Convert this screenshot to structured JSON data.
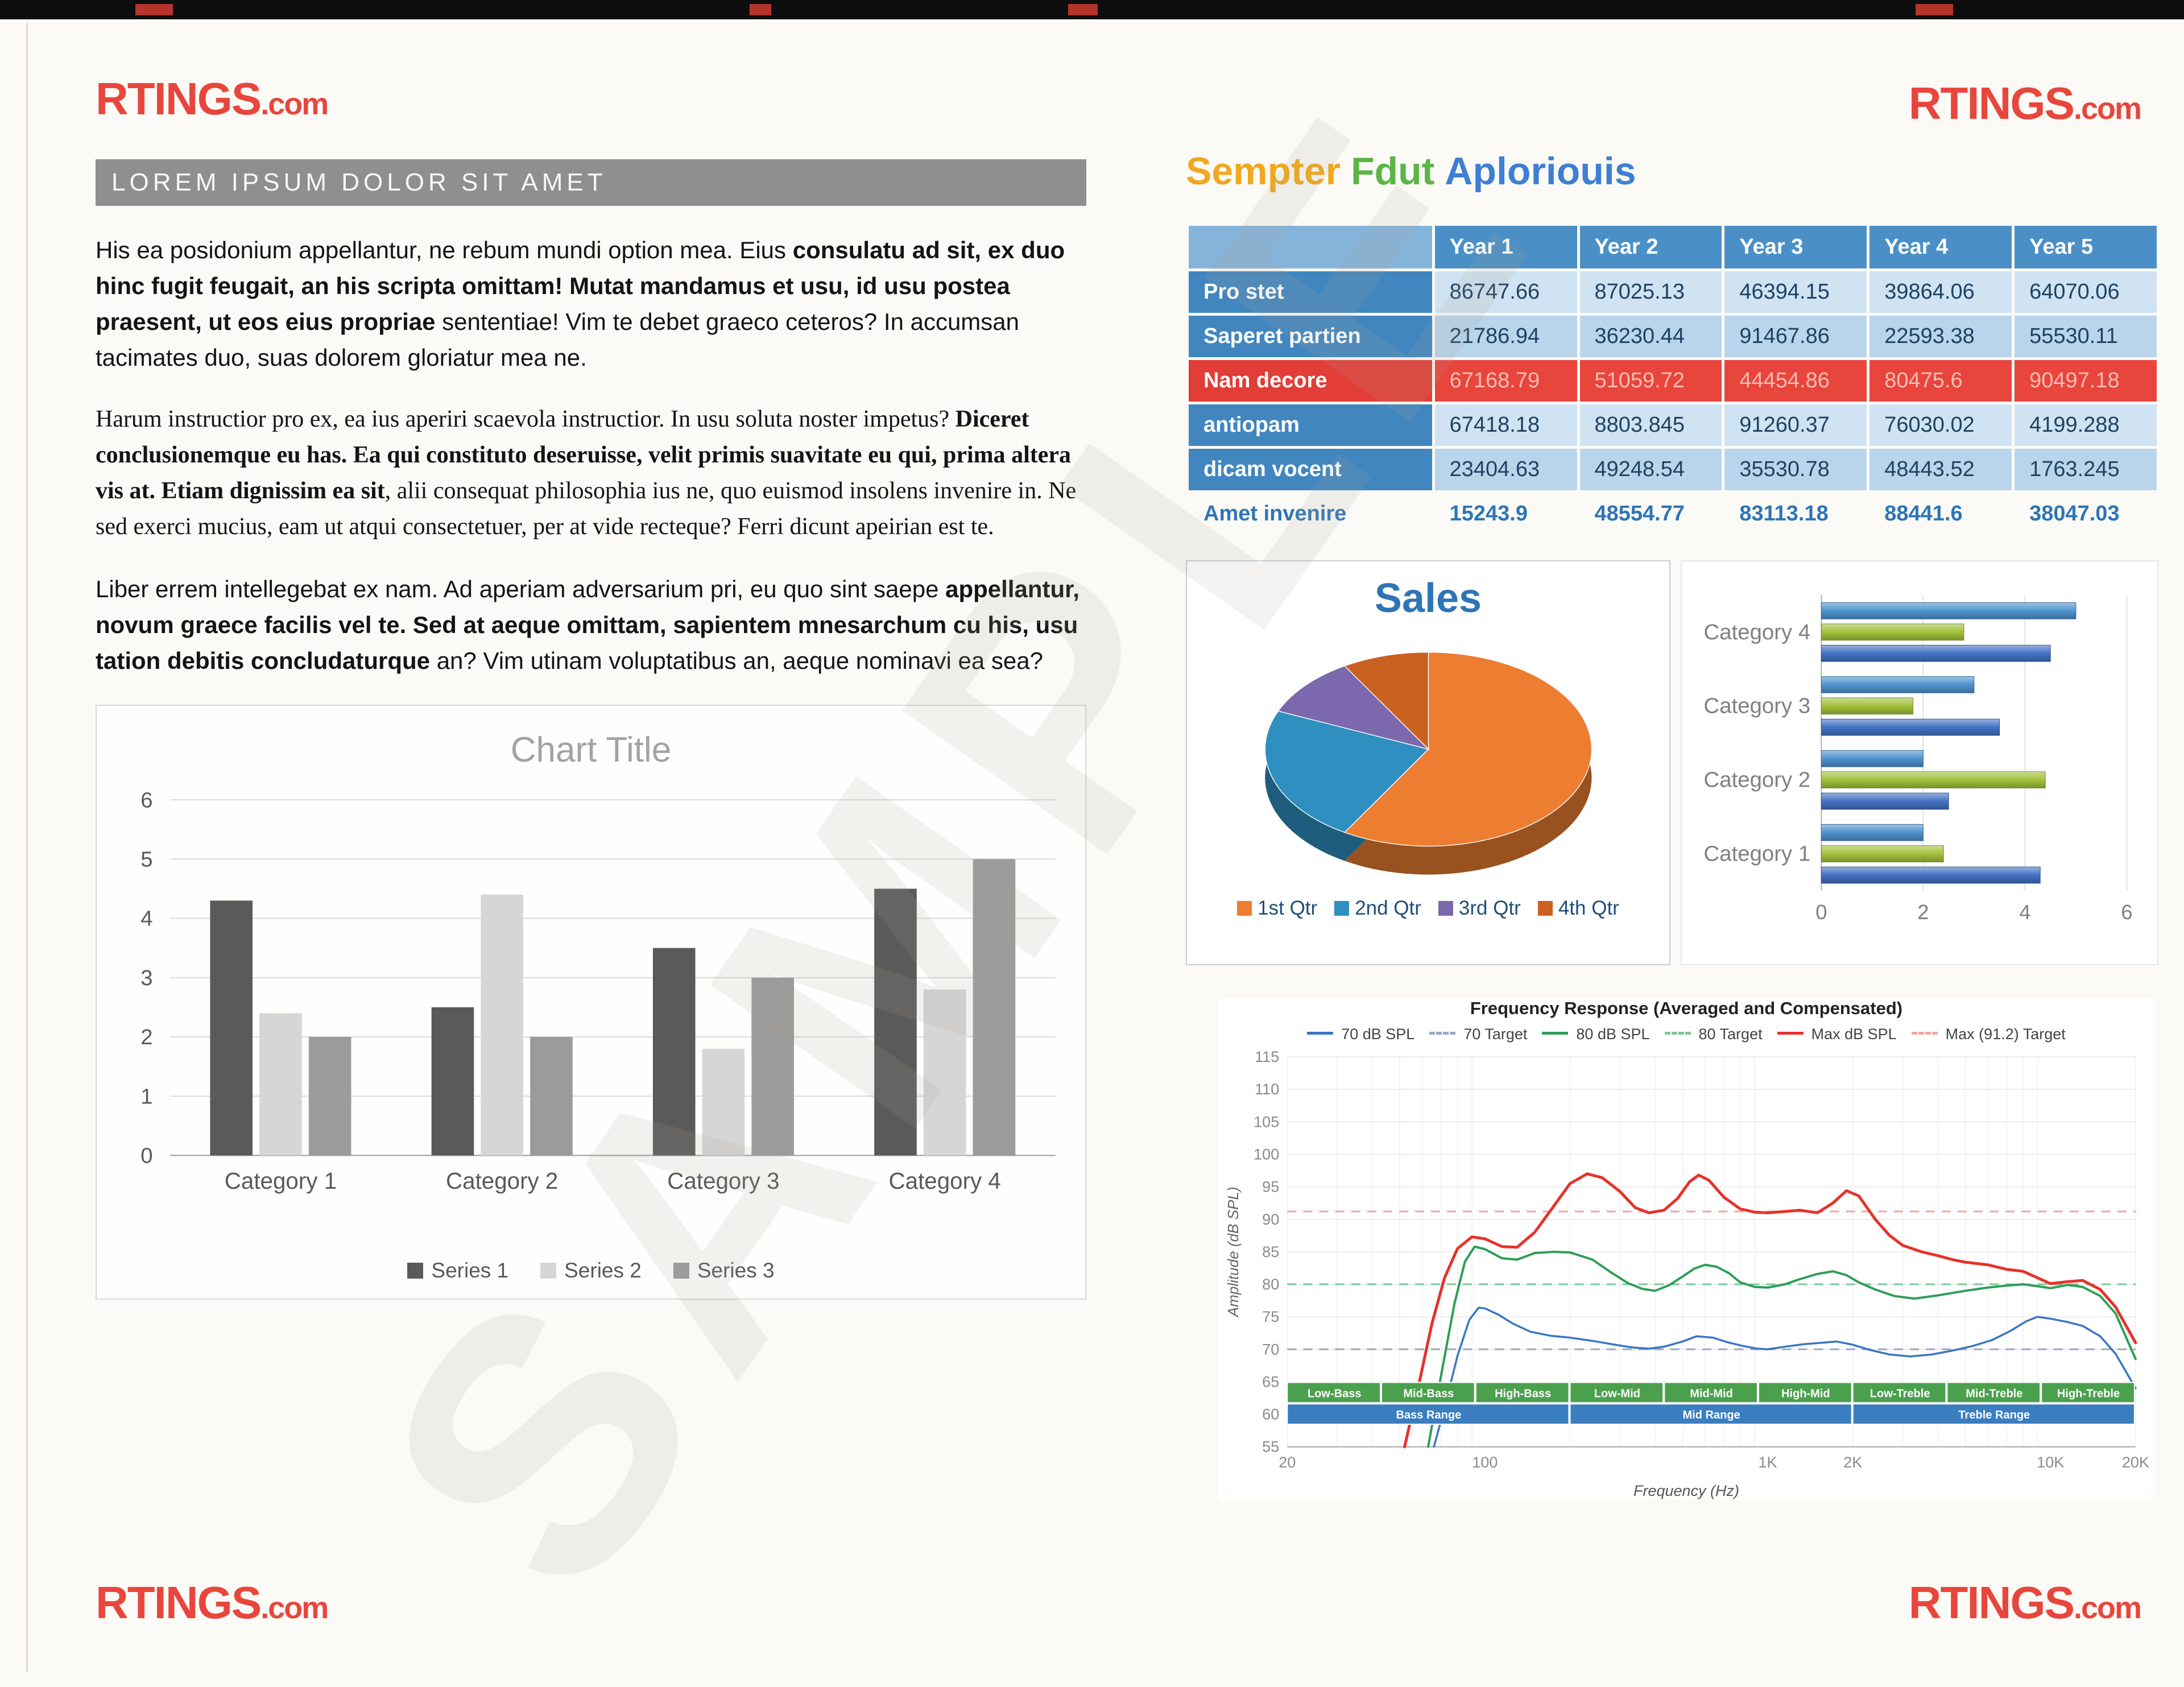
{
  "page": {
    "watermark": "SAMPLE"
  },
  "logo": {
    "text": "RTINGS",
    "suffix": ".com",
    "color": "#e8463c"
  },
  "left": {
    "header_bar": "LOREM IPSUM DOLOR SIT AMET",
    "paragraphs": [
      {
        "pre": "His ea posidonium appellantur, ne rebum mundi option mea. Eius ",
        "bold": "consulatu ad sit, ex duo hinc fugit feugait, an his scripta omittam! Mutat mandamus et usu, id usu postea praesent, ut eos eius propriae",
        "post": " sententiae! Vim te debet graeco ceteros? In accumsan tacimates duo, suas dolorem gloriatur mea ne."
      },
      {
        "pre": "Harum instructior pro ex, ea ius aperiri scaevola instructior. In usu soluta noster impetus? ",
        "bold": "Diceret conclusionemque eu has. Ea qui constituto deseruisse, velit primis suavitate eu qui, prima altera vis at. Etiam dignissim ea sit",
        "post": ", alii consequat philosophia ius ne, quo euismod insolens invenire in. Ne sed exerci mucius, eam ut atqui consectetuer, per at vide recteque? Ferri dicunt apeirian est te."
      },
      {
        "pre": "Liber errem intellegebat ex nam. Ad aperiam adversarium pri, eu quo sint saepe ",
        "bold": "appellantur, novum graece facilis vel te. Sed at aeque omittam, sapientem mnesarchum cu his, usu tation debitis concludaturque",
        "post": " an? Vim utinam voluptatibus an, aeque nominavi ea sea?"
      }
    ]
  },
  "right": {
    "heading": {
      "words": [
        "Sempter",
        "Fdut",
        "Aploriouis"
      ],
      "colors": [
        "#f0a81e",
        "#5cb545",
        "#3e7fd4"
      ]
    }
  },
  "table": {
    "corner_label": "",
    "columns": [
      "Year 1",
      "Year 2",
      "Year 3",
      "Year 4",
      "Year 5"
    ],
    "rows": [
      {
        "label": "Pro stet",
        "style": "light",
        "values": [
          "86747.66",
          "87025.13",
          "46394.15",
          "39864.06",
          "64070.06"
        ]
      },
      {
        "label": "Saperet partien",
        "style": "mid",
        "values": [
          "21786.94",
          "36230.44",
          "91467.86",
          "22593.38",
          "55530.11"
        ]
      },
      {
        "label": "Nam decore",
        "style": "red",
        "values": [
          "67168.79",
          "51059.72",
          "44454.86",
          "80475.6",
          "90497.18"
        ]
      },
      {
        "label": "antiopam",
        "style": "light",
        "values": [
          "67418.18",
          "8803.845",
          "91260.37",
          "76030.02",
          "4199.288"
        ]
      },
      {
        "label": "dicam vocent",
        "style": "mid",
        "values": [
          "23404.63",
          "49248.54",
          "35530.78",
          "48443.52",
          "1763.245"
        ]
      },
      {
        "label": "Amet invenire",
        "style": "plain",
        "values": [
          "15243.9",
          "48554.77",
          "83113.18",
          "88441.6",
          "38047.03"
        ]
      }
    ]
  },
  "chart_data": [
    {
      "id": "column",
      "type": "bar",
      "title": "Chart Title",
      "categories": [
        "Category 1",
        "Category 2",
        "Category 3",
        "Category 4"
      ],
      "series": [
        {
          "name": "Series 1",
          "color": "#5a5a5a",
          "values": [
            4.3,
            2.5,
            3.5,
            4.5
          ]
        },
        {
          "name": "Series 2",
          "color": "#d6d6d6",
          "values": [
            2.4,
            4.4,
            1.8,
            2.8
          ]
        },
        {
          "name": "Series 3",
          "color": "#9b9b9b",
          "values": [
            2,
            2,
            3,
            5
          ]
        }
      ],
      "ylim": [
        0,
        6
      ],
      "yticks": [
        0,
        1,
        2,
        3,
        4,
        5,
        6
      ],
      "legend_position": "bottom"
    },
    {
      "id": "pie",
      "type": "pie",
      "title": "Sales",
      "labels": [
        "1st Qtr",
        "2nd Qtr",
        "3rd Qtr",
        "4th Qtr"
      ],
      "values": [
        8.2,
        3.2,
        1.4,
        1.2
      ],
      "colors": [
        "#ed7d31",
        "#2e8fc0",
        "#7b68ad",
        "#cb6120"
      ]
    },
    {
      "id": "hbar",
      "type": "bar",
      "orientation": "horizontal",
      "categories": [
        "Category 1",
        "Category 2",
        "Category 3",
        "Category 4"
      ],
      "series": [
        {
          "name": "Series 1",
          "color": "#4472c4",
          "values": [
            4.3,
            2.5,
            3.5,
            4.5
          ]
        },
        {
          "name": "Series 2",
          "color": "#a3c13c",
          "values": [
            2.4,
            4.4,
            1.8,
            2.8
          ]
        },
        {
          "name": "Series 3",
          "color": "#4f93ce",
          "values": [
            2,
            2,
            3,
            5
          ]
        }
      ],
      "xlim": [
        0,
        6
      ],
      "xticks": [
        0,
        2,
        4,
        6
      ]
    },
    {
      "id": "freq",
      "type": "line",
      "xscale": "log",
      "title": "Frequency Response (Averaged and Compensated)",
      "xlabel": "Frequency (Hz)",
      "ylabel": "Amplitude (dB SPL)",
      "ylim": [
        55,
        115
      ],
      "yticks": [
        55,
        60,
        65,
        70,
        75,
        80,
        85,
        90,
        95,
        100,
        105,
        110,
        115
      ],
      "xticks": [
        {
          "f": 20,
          "label": "20"
        },
        {
          "f": 100,
          "label": "100"
        },
        {
          "f": 1000,
          "label": "1K"
        },
        {
          "f": 2000,
          "label": "2K"
        },
        {
          "f": 10000,
          "label": "10K"
        },
        {
          "f": 20000,
          "label": "20K"
        }
      ],
      "targets": [
        {
          "label": "70 Target",
          "value": 70,
          "color": "#9aa7c4"
        },
        {
          "label": "80 Target",
          "value": 80,
          "color": "#7cc79a"
        },
        {
          "label": "Max (91.2) Target",
          "value": 91.2,
          "color": "#f0a6a0"
        }
      ],
      "series": [
        {
          "name": "70 dB SPL",
          "color": "#3a76c4",
          "width": 3.5,
          "points": [
            [
              66,
              55
            ],
            [
              72,
              61
            ],
            [
              80,
              69
            ],
            [
              88,
              74.5
            ],
            [
              95,
              76.4
            ],
            [
              100,
              76.3
            ],
            [
              112,
              75.3
            ],
            [
              125,
              74
            ],
            [
              145,
              72.7
            ],
            [
              170,
              72.1
            ],
            [
              200,
              71.8
            ],
            [
              240,
              71.3
            ],
            [
              280,
              70.8
            ],
            [
              330,
              70.3
            ],
            [
              380,
              70.1
            ],
            [
              430,
              70.4
            ],
            [
              500,
              71.2
            ],
            [
              560,
              72
            ],
            [
              640,
              71.8
            ],
            [
              720,
              71.1
            ],
            [
              820,
              70.5
            ],
            [
              920,
              70.1
            ],
            [
              1000,
              70
            ],
            [
              1150,
              70.4
            ],
            [
              1350,
              70.8
            ],
            [
              1550,
              71
            ],
            [
              1750,
              71.2
            ],
            [
              2000,
              70.7
            ],
            [
              2300,
              69.9
            ],
            [
              2700,
              69.2
            ],
            [
              3200,
              68.9
            ],
            [
              3800,
              69.2
            ],
            [
              4500,
              69.8
            ],
            [
              5300,
              70.5
            ],
            [
              6200,
              71.4
            ],
            [
              7200,
              72.8
            ],
            [
              8200,
              74.3
            ],
            [
              9000,
              75
            ],
            [
              10000,
              74.7
            ],
            [
              11500,
              74.2
            ],
            [
              13000,
              73.6
            ],
            [
              15000,
              72
            ],
            [
              17000,
              69.3
            ],
            [
              20000,
              64
            ]
          ]
        },
        {
          "name": "80 dB SPL",
          "color": "#2e9e57",
          "width": 4,
          "points": [
            [
              63,
              55
            ],
            [
              70,
              66
            ],
            [
              78,
              77
            ],
            [
              85,
              83.5
            ],
            [
              92,
              85.8
            ],
            [
              100,
              85.4
            ],
            [
              115,
              84
            ],
            [
              130,
              83.8
            ],
            [
              150,
              84.8
            ],
            [
              175,
              85
            ],
            [
              200,
              84.9
            ],
            [
              240,
              83.8
            ],
            [
              280,
              81.8
            ],
            [
              320,
              80.2
            ],
            [
              360,
              79.3
            ],
            [
              400,
              79
            ],
            [
              450,
              79.9
            ],
            [
              500,
              81.2
            ],
            [
              550,
              82.4
            ],
            [
              600,
              83
            ],
            [
              660,
              82.7
            ],
            [
              730,
              81.7
            ],
            [
              800,
              80.3
            ],
            [
              900,
              79.6
            ],
            [
              1000,
              79.5
            ],
            [
              1150,
              80
            ],
            [
              1300,
              80.8
            ],
            [
              1500,
              81.6
            ],
            [
              1700,
              82
            ],
            [
              1900,
              81.4
            ],
            [
              2100,
              80.3
            ],
            [
              2400,
              79.2
            ],
            [
              2800,
              78.2
            ],
            [
              3300,
              77.8
            ],
            [
              4000,
              78.3
            ],
            [
              5000,
              79
            ],
            [
              6000,
              79.5
            ],
            [
              7000,
              79.8
            ],
            [
              8000,
              80
            ],
            [
              9000,
              79.7
            ],
            [
              10000,
              79.4
            ],
            [
              11500,
              79.9
            ],
            [
              13000,
              79.6
            ],
            [
              15000,
              78.2
            ],
            [
              17000,
              75.5
            ],
            [
              20000,
              68.5
            ]
          ]
        },
        {
          "name": "Max dB SPL",
          "color": "#e63229",
          "width": 5,
          "points": [
            [
              52,
              55
            ],
            [
              58,
              64
            ],
            [
              65,
              74
            ],
            [
              72,
              81
            ],
            [
              80,
              85.5
            ],
            [
              90,
              87.3
            ],
            [
              100,
              87
            ],
            [
              115,
              85.8
            ],
            [
              130,
              85.7
            ],
            [
              150,
              88
            ],
            [
              175,
              92
            ],
            [
              200,
              95.5
            ],
            [
              230,
              97
            ],
            [
              260,
              96.4
            ],
            [
              300,
              94.3
            ],
            [
              340,
              91.8
            ],
            [
              380,
              91
            ],
            [
              430,
              91.4
            ],
            [
              480,
              93.2
            ],
            [
              530,
              95.8
            ],
            [
              570,
              96.8
            ],
            [
              620,
              96
            ],
            [
              700,
              93.4
            ],
            [
              800,
              91.6
            ],
            [
              900,
              91.1
            ],
            [
              1000,
              91
            ],
            [
              1150,
              91.2
            ],
            [
              1300,
              91.4
            ],
            [
              1500,
              91
            ],
            [
              1700,
              92.5
            ],
            [
              1900,
              94.4
            ],
            [
              2100,
              93.6
            ],
            [
              2400,
              90
            ],
            [
              2700,
              87.5
            ],
            [
              3000,
              86
            ],
            [
              3500,
              85
            ],
            [
              4000,
              84.4
            ],
            [
              4500,
              83.8
            ],
            [
              5000,
              83.4
            ],
            [
              6000,
              83
            ],
            [
              7000,
              82.3
            ],
            [
              8000,
              82
            ],
            [
              9000,
              81
            ],
            [
              10000,
              80.1
            ],
            [
              11500,
              80.4
            ],
            [
              13000,
              80.6
            ],
            [
              15000,
              79.2
            ],
            [
              17000,
              76.5
            ],
            [
              20000,
              71
            ]
          ]
        }
      ],
      "legend": [
        {
          "label": "70 dB SPL",
          "color": "#3a76c4",
          "dash": false
        },
        {
          "label": "70 Target",
          "color": "#9aa7c4",
          "dash": true
        },
        {
          "label": "80 dB SPL",
          "color": "#2e9e57",
          "dash": false
        },
        {
          "label": "80 Target",
          "color": "#7cc79a",
          "dash": true
        },
        {
          "label": "Max dB SPL",
          "color": "#e63229",
          "dash": false
        },
        {
          "label": "Max (91.2) Target",
          "color": "#f0a6a0",
          "dash": true
        }
      ],
      "bands": {
        "range": [
          20,
          20000
        ],
        "row1": {
          "color": "#4ba04e",
          "labels": [
            "Low-Bass",
            "Mid-Bass",
            "High-Bass",
            "Low-Mid",
            "Mid-Mid",
            "High-Mid",
            "Low-Treble",
            "Mid-Treble",
            "High-Treble"
          ]
        },
        "row2": {
          "color": "#3a7ec0",
          "labels": [
            "Bass Range",
            "Mid Range",
            "Treble Range"
          ]
        }
      }
    }
  ]
}
